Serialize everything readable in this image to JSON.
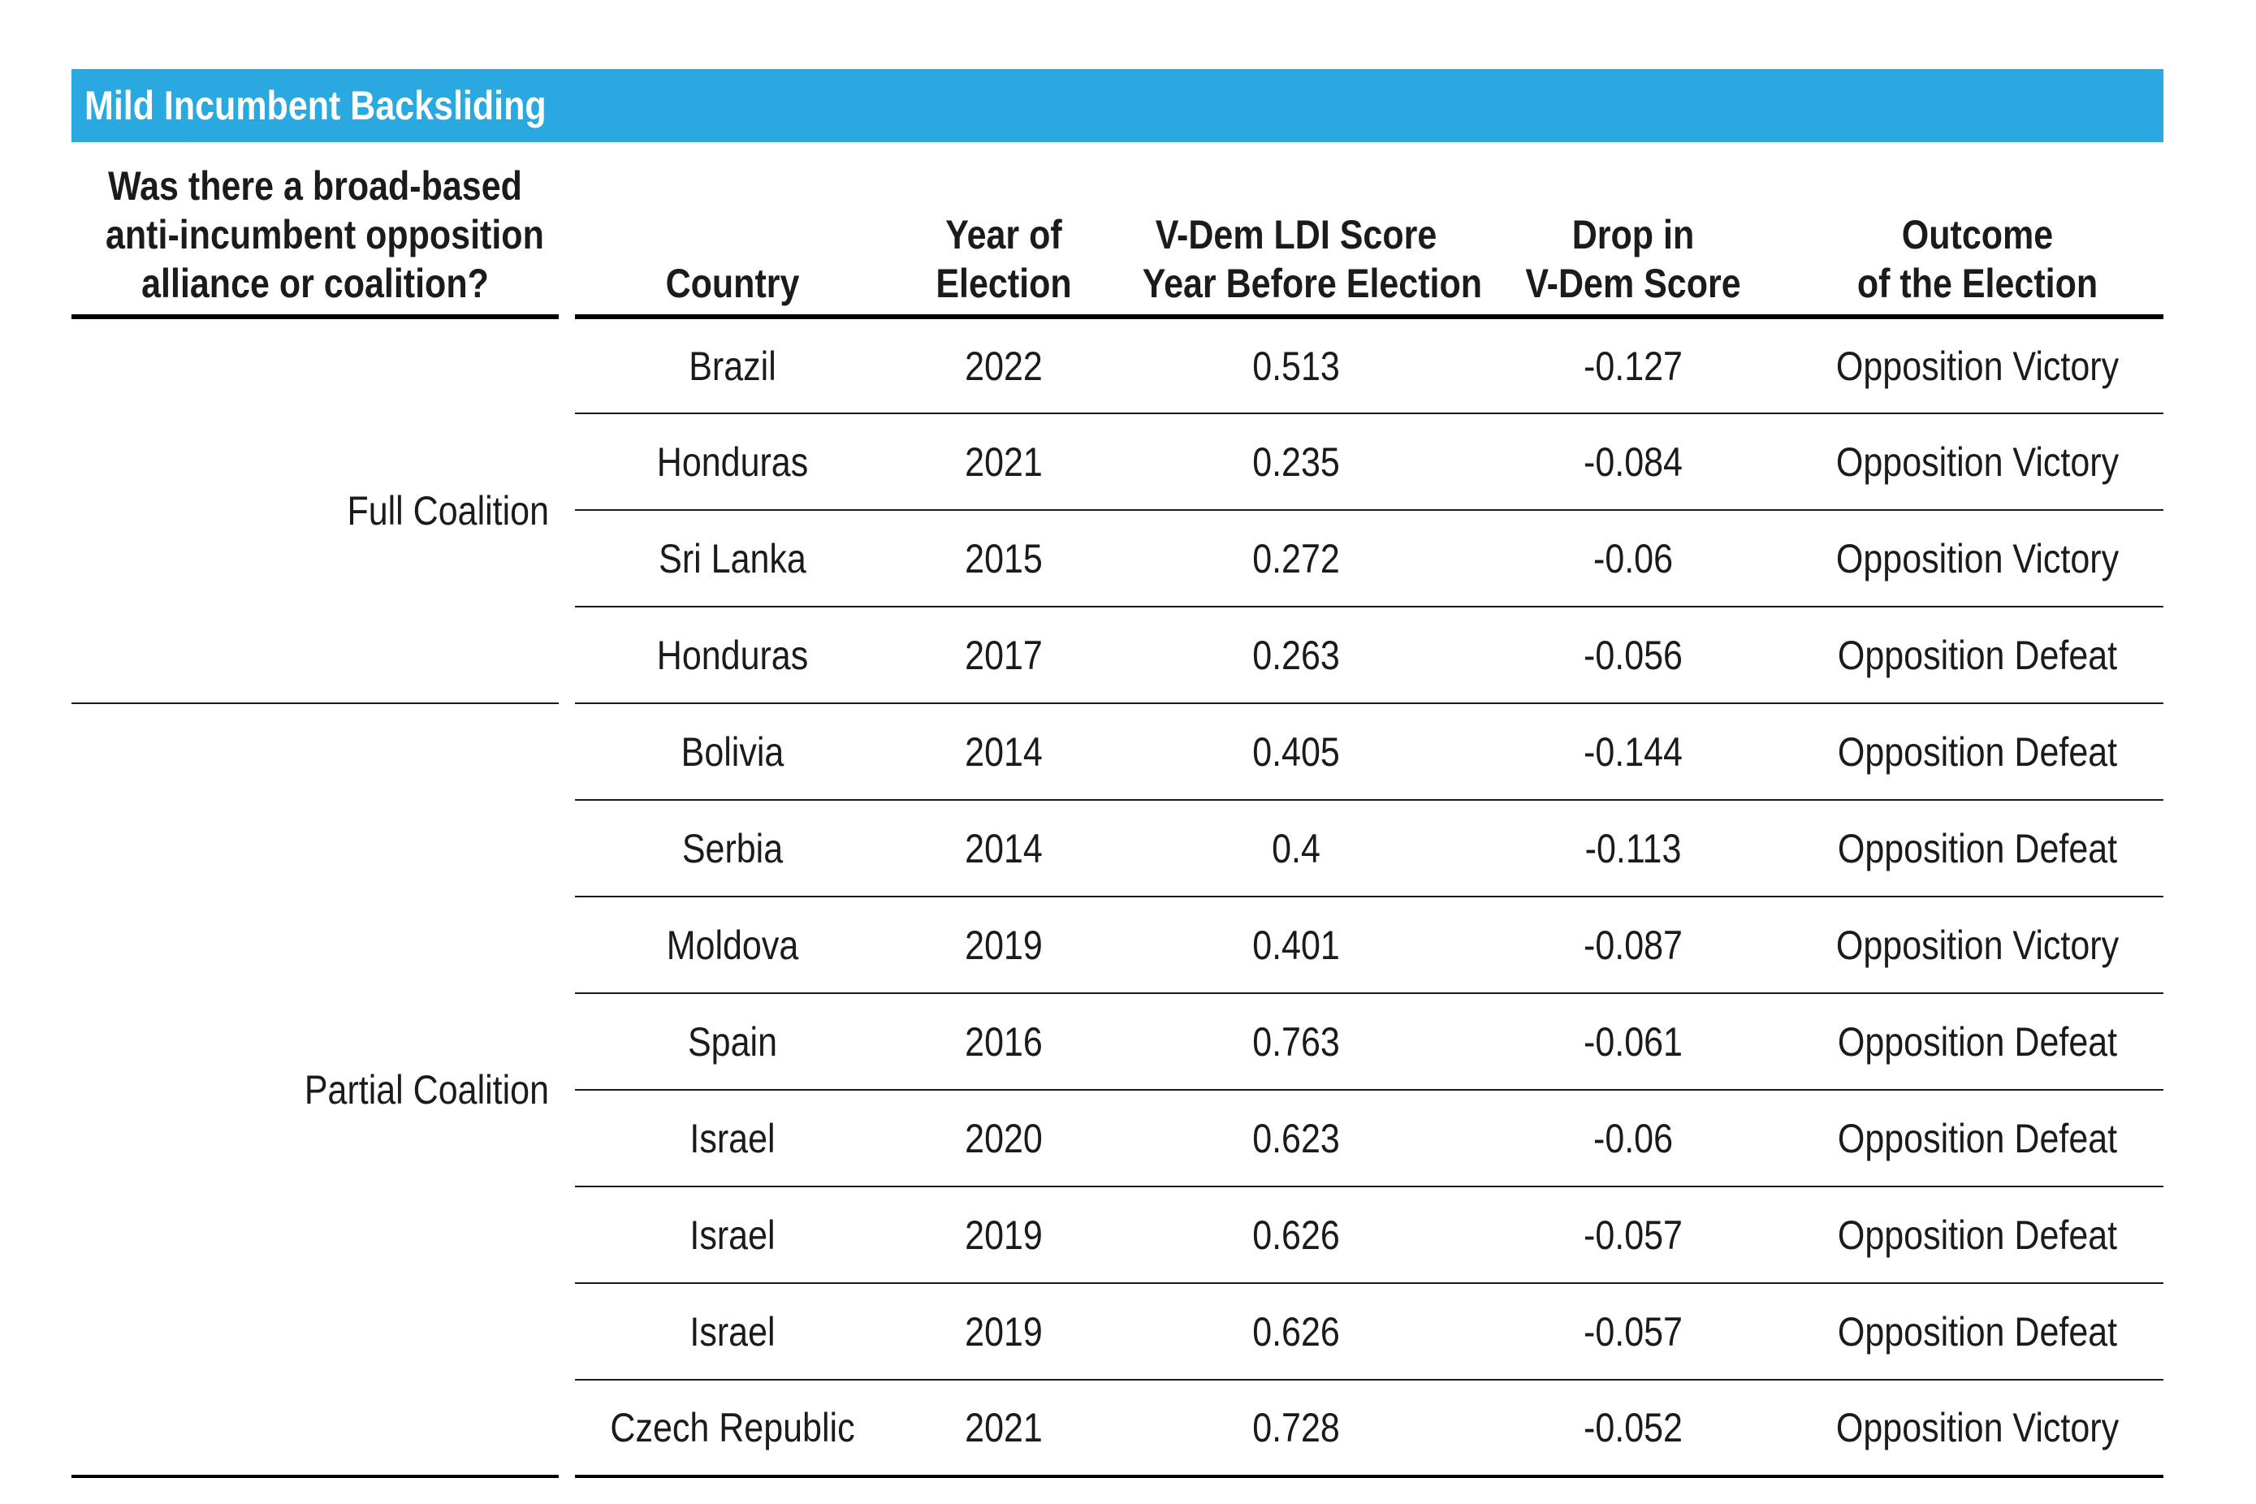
{
  "title": "Mild Incumbent Backsliding",
  "colors": {
    "header_bar_blue": "#29A9E0",
    "text": "#1B1B1B",
    "rule": "#000000"
  },
  "table": {
    "group_header_lines": [
      "Was there a broad-based",
      "anti-incumbent opposition",
      "alliance or coalition?"
    ],
    "columns": [
      {
        "label_lines": [
          "Country"
        ]
      },
      {
        "label_lines": [
          "Year of",
          "Election"
        ]
      },
      {
        "label_lines": [
          "V-Dem LDI Score",
          "Year Before Election"
        ]
      },
      {
        "label_lines": [
          "Drop in",
          "V-Dem Score"
        ]
      },
      {
        "label_lines": [
          "Outcome",
          "of the Election"
        ]
      }
    ],
    "groups": [
      {
        "label": "Full Coalition",
        "rows": [
          [
            "Brazil",
            "2022",
            "0.513",
            "-0.127",
            "Opposition Victory"
          ],
          [
            "Honduras",
            "2021",
            "0.235",
            "-0.084",
            "Opposition Victory"
          ],
          [
            "Sri Lanka",
            "2015",
            "0.272",
            "-0.06",
            "Opposition Victory"
          ],
          [
            "Honduras",
            "2017",
            "0.263",
            "-0.056",
            "Opposition Defeat"
          ]
        ]
      },
      {
        "label": "Partial Coalition",
        "rows": [
          [
            "Bolivia",
            "2014",
            "0.405",
            "-0.144",
            "Opposition Defeat"
          ],
          [
            "Serbia",
            "2014",
            "0.4",
            "-0.113",
            "Opposition Defeat"
          ],
          [
            "Moldova",
            "2019",
            "0.401",
            "-0.087",
            "Opposition Victory"
          ],
          [
            "Spain",
            "2016",
            "0.763",
            "-0.061",
            "Opposition Defeat"
          ],
          [
            "Israel",
            "2020",
            "0.623",
            "-0.06",
            "Opposition Defeat"
          ],
          [
            "Israel",
            "2019",
            "0.626",
            "-0.057",
            "Opposition Defeat"
          ],
          [
            "Israel",
            "2019",
            "0.626",
            "-0.057",
            "Opposition Defeat"
          ],
          [
            "Czech Republic",
            "2021",
            "0.728",
            "-0.052",
            "Opposition Victory"
          ]
        ]
      }
    ]
  }
}
